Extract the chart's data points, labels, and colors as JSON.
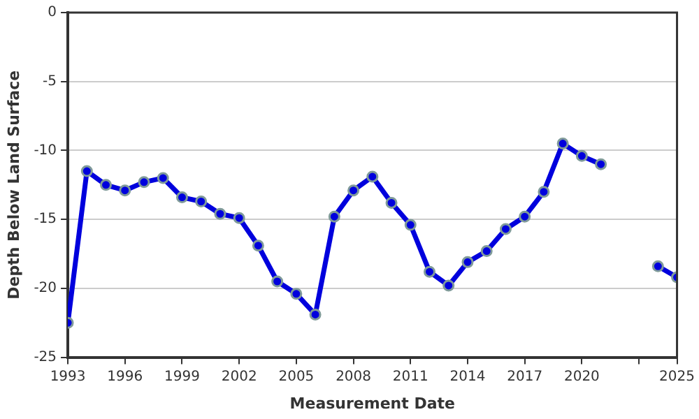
{
  "chart_data": {
    "type": "line",
    "xlabel": "Measurement Date",
    "ylabel": "Depth Below Land Surface",
    "x": [
      1993,
      1994,
      1995,
      1996,
      1997,
      1998,
      1999,
      2000,
      2001,
      2002,
      2003,
      2004,
      2005,
      2006,
      2007,
      2008,
      2009,
      2010,
      2011,
      2012,
      2013,
      2014,
      2015,
      2016,
      2017,
      2018,
      2019,
      2020,
      2021,
      2022,
      2023,
      2024,
      2025
    ],
    "series": [
      {
        "color": "#0000dd",
        "values": [
          -22.5,
          -11.5,
          -12.5,
          -12.9,
          -12.3,
          -12.0,
          -13.4,
          -13.7,
          -14.6,
          -14.9,
          -16.9,
          -19.5,
          -20.4,
          -21.9,
          -14.8,
          -12.9,
          -11.9,
          -13.8,
          -15.4,
          -18.8,
          -19.8,
          -18.1,
          -17.3,
          -15.7,
          -14.8,
          -13.0,
          -9.5,
          -10.4,
          -11.0,
          null,
          null,
          -18.4,
          -19.2
        ]
      }
    ],
    "xlim": [
      1993,
      2025
    ],
    "xticks": [
      1993,
      1996,
      1999,
      2002,
      2005,
      2008,
      2011,
      2014,
      2017,
      2020,
      {
        "value": 2023,
        "label": null
      },
      2025
    ],
    "ylim": [
      -25,
      0
    ],
    "yticks": [
      -25,
      -20,
      -15,
      -10,
      -5,
      0
    ],
    "grid": "y",
    "legend": false,
    "marker": "circle",
    "line_style": "solid"
  }
}
